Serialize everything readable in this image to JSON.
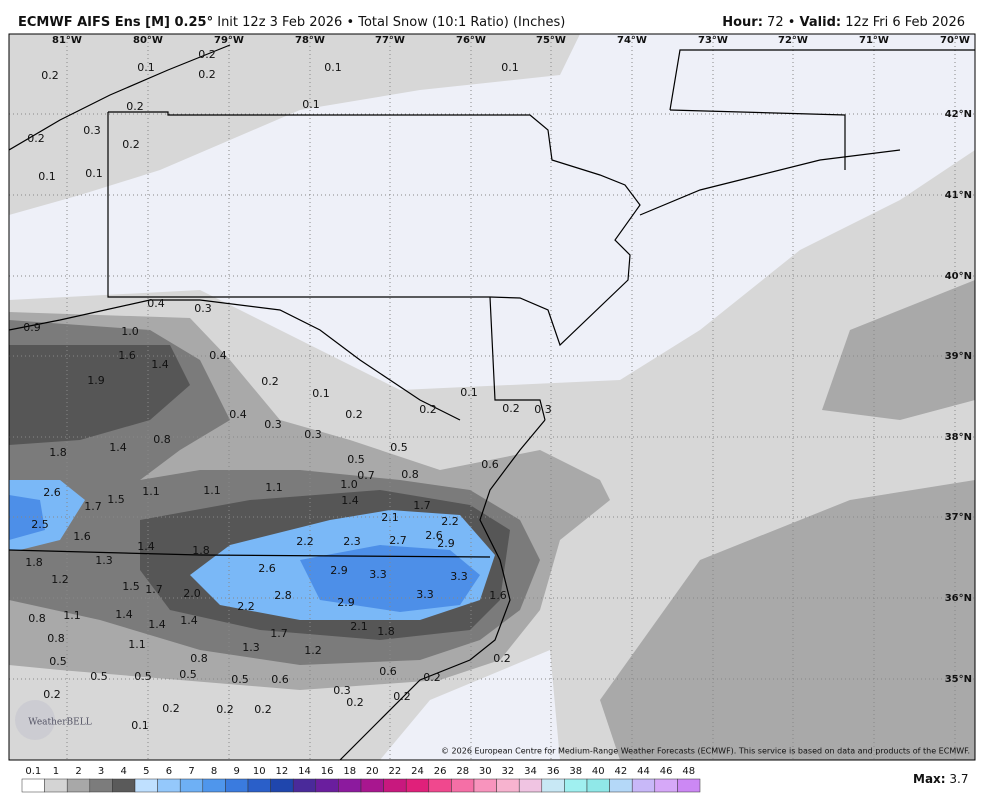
{
  "header": {
    "title": "ECMWF AIFS Ens [M] 0.25°",
    "init": "Init 12z 3 Feb 2026",
    "separator": "•",
    "product": "Total Snow (10:1 Ratio) (Inches)",
    "hour_label": "Hour:",
    "hour": "72",
    "valid_label": "Valid:",
    "valid": "12z Fri 6 Feb 2026"
  },
  "map": {
    "longitudes": [
      "81°W",
      "80°W",
      "79°W",
      "78°W",
      "77°W",
      "76°W",
      "75°W",
      "74°W",
      "73°W",
      "72°W",
      "71°W",
      "70°W"
    ],
    "latitudes": [
      "42°N",
      "41°N",
      "40°N",
      "39°N",
      "38°N",
      "37°N",
      "36°N",
      "35°N"
    ],
    "value_labels": [
      "0.2",
      "0.1",
      "0.2",
      "0.2",
      "0.1",
      "0.1",
      "0.2",
      "0.1",
      "0.3",
      "0.2",
      "0.2",
      "0.1",
      "0.1",
      "0.4",
      "0.3",
      "0.9",
      "1.0",
      "1.6",
      "1.4",
      "0.4",
      "1.9",
      "0.2",
      "0.1",
      "0.4",
      "0.2",
      "0.3",
      "0.3",
      "0.1",
      "0.2",
      "0.2",
      "0.3",
      "0.8",
      "1.4",
      "1.8",
      "0.5",
      "0.5",
      "0.7",
      "0.8",
      "0.6",
      "1.0",
      "2.6",
      "1.5",
      "1.7",
      "1.1",
      "1.1",
      "1.1",
      "1.4",
      "1.7",
      "2.5",
      "2.1",
      "2.2",
      "1.6",
      "1.4",
      "1.8",
      "2.2",
      "2.3",
      "2.7",
      "2.6",
      "2.9",
      "1.8",
      "1.3",
      "2.6",
      "2.9",
      "3.3",
      "3.3",
      "1.2",
      "1.5",
      "1.7",
      "2.0",
      "2.8",
      "2.9",
      "3.3",
      "1.6",
      "0.8",
      "1.1",
      "1.4",
      "1.4",
      "1.4",
      "2.2",
      "2.1",
      "1.8",
      "1.7",
      "0.8",
      "1.1",
      "1.3",
      "1.2",
      "0.8",
      "0.2",
      "0.5",
      "0.5",
      "0.5",
      "0.5",
      "0.5",
      "0.6",
      "0.6",
      "0.2",
      "0.2",
      "0.3",
      "0.2",
      "0.2",
      "0.2",
      "0.2",
      "0.2",
      "0.1"
    ],
    "logo": "WeatherBELL",
    "copyright": "© 2026 European Centre for Medium-Range Weather Forecasts (ECMWF). This service is based on data and products of the ECMWF."
  },
  "colorbar": {
    "labels": [
      "0.1",
      "1",
      "2",
      "3",
      "4",
      "5",
      "6",
      "7",
      "8",
      "9",
      "10",
      "12",
      "14",
      "16",
      "18",
      "20",
      "22",
      "24",
      "26",
      "28",
      "30",
      "32",
      "34",
      "36",
      "38",
      "40",
      "42",
      "44",
      "46",
      "48"
    ],
    "colors": [
      "#ffffff",
      "#d4d4d4",
      "#a8a8a8",
      "#7c7c7c",
      "#5a5a5a",
      "#bfe0ff",
      "#94c8fb",
      "#6eb0f5",
      "#4f96ec",
      "#3a7bdf",
      "#2a5fc9",
      "#1f46ad",
      "#4a2a9a",
      "#6a1e9e",
      "#8c1a9e",
      "#a8168f",
      "#c8187e",
      "#e0207a",
      "#f0488e",
      "#f56fa6",
      "#f894bd",
      "#f7b3cf",
      "#f0c4e2",
      "#c8e8f5",
      "#a0f0f0",
      "#90e8e8",
      "#b4d8f8",
      "#c8b8f8",
      "#d6a8f8",
      "#cc88f4"
    ],
    "max_label": "Max:",
    "max": "3.7"
  }
}
